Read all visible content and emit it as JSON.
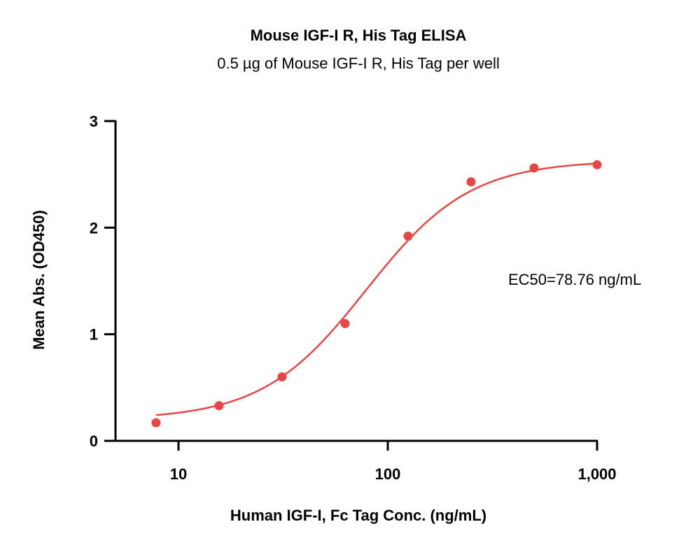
{
  "chart_data": {
    "type": "scatter",
    "title": "Mouse IGF-I R, His Tag ELISA",
    "subtitle": "0.5 µg of Mouse IGF-I R, His Tag per well",
    "xlabel": "Human IGF-I, Fc Tag Conc. (ng/mL)",
    "ylabel": "Mean Abs. (OD450)",
    "x_scale": "log",
    "xlim": [
      5,
      1000
    ],
    "ylim": [
      0,
      3
    ],
    "x_ticks": [
      {
        "value": 10,
        "label": "10"
      },
      {
        "value": 100,
        "label": "100"
      },
      {
        "value": 1000,
        "label": "1,000"
      }
    ],
    "y_ticks": [
      {
        "value": 0,
        "label": "0"
      },
      {
        "value": 1,
        "label": "1"
      },
      {
        "value": 2,
        "label": "2"
      },
      {
        "value": 3,
        "label": "3"
      }
    ],
    "grid": false,
    "series": [
      {
        "color": "#e84545",
        "x": [
          7.8125,
          15.625,
          31.25,
          62.5,
          125,
          250,
          500,
          1000
        ],
        "y": [
          0.17,
          0.33,
          0.6,
          1.1,
          1.92,
          2.43,
          2.56,
          2.59
        ]
      }
    ],
    "fit_curve": {
      "model": "4PL",
      "color": "#e84545",
      "bottom": 0.2,
      "top": 2.63,
      "ec50": 78.76,
      "hill": 1.75
    },
    "annotations": [
      {
        "text": "EC50=78.76 ng/mL"
      }
    ]
  }
}
